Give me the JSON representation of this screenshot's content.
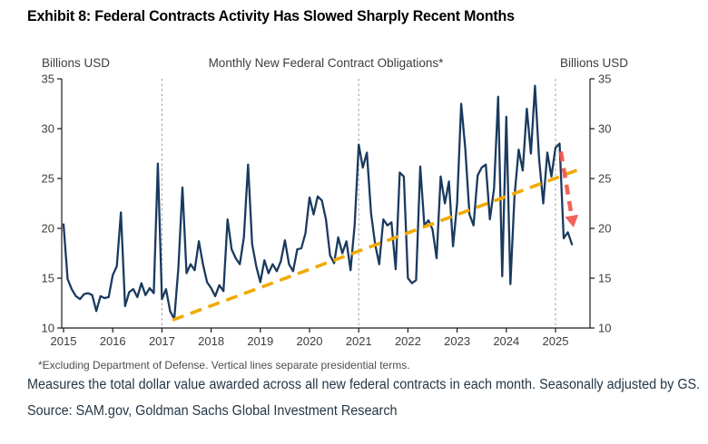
{
  "page": {
    "title": "Exhibit 8: Federal Contracts Activity Has Slowed Sharply Recent Months",
    "footnote": "*Excluding Department of Defense. Vertical lines separate presidential terms.",
    "description": "Measures the total dollar value awarded across all new federal contracts in each month. Seasonally adjusted by GS.",
    "source": "Source: SAM.gov, Goldman Sachs Global Investment Research"
  },
  "chart_data": {
    "type": "line",
    "title": "Monthly New Federal Contract Obligations*",
    "left_axis_caption": "Billions USD",
    "right_axis_caption": "Billions USD",
    "ylim": [
      10,
      35
    ],
    "y_ticks": [
      10,
      15,
      20,
      25,
      30,
      35
    ],
    "x_tick_years": [
      2015,
      2016,
      2017,
      2018,
      2019,
      2020,
      2021,
      2022,
      2023,
      2024,
      2025
    ],
    "grid": "off",
    "series_start": "2015-01",
    "series": [
      {
        "name": "Monthly new federal contract obligations ($bn, seasonally adjusted)",
        "values": [
          20.4,
          14.9,
          13.9,
          13.2,
          12.9,
          13.4,
          13.5,
          13.3,
          11.7,
          13.2,
          13.0,
          13.1,
          15.3,
          16.2,
          21.6,
          12.2,
          13.6,
          13.9,
          13.1,
          14.5,
          13.3,
          14.0,
          13.5,
          26.5,
          12.9,
          13.9,
          11.7,
          10.9,
          16.0,
          24.1,
          15.5,
          16.4,
          15.8,
          18.7,
          16.4,
          14.6,
          14.0,
          13.2,
          14.3,
          13.7,
          20.9,
          17.9,
          17.0,
          16.4,
          19.1,
          26.4,
          18.4,
          16.2,
          14.6,
          16.8,
          15.5,
          16.4,
          15.7,
          16.7,
          18.8,
          16.4,
          15.7,
          17.9,
          18.0,
          19.5,
          23.1,
          21.4,
          23.2,
          22.8,
          20.9,
          17.3,
          16.5,
          19.1,
          17.5,
          18.7,
          15.8,
          20.3,
          28.4,
          26.1,
          27.6,
          21.5,
          18.4,
          16.4,
          20.9,
          20.3,
          20.6,
          15.9,
          25.6,
          25.2,
          15.0,
          14.5,
          14.8,
          26.2,
          20.3,
          20.8,
          19.9,
          17.0,
          25.2,
          22.5,
          24.7,
          18.2,
          22.5,
          32.5,
          28.0,
          21.4,
          20.3,
          25.3,
          26.1,
          26.4,
          20.9,
          24.0,
          33.2,
          15.2,
          31.2,
          14.4,
          23.2,
          27.9,
          25.8,
          32.0,
          27.5,
          34.3,
          27.0,
          22.5,
          27.6,
          25.2,
          28.1,
          28.5,
          19.0,
          19.6,
          18.4
        ]
      }
    ],
    "trendline": {
      "style": "dashed",
      "from": {
        "month_index": 26.6,
        "value": 10.8
      },
      "to": {
        "month_index": 125.7,
        "value": 25.9
      }
    },
    "decline_arrow": {
      "style": "dashed-arrow",
      "from": {
        "month_index": 121.3,
        "value": 27.7
      },
      "to": {
        "month_index": 124.4,
        "value": 20.1
      }
    },
    "presidential_term_separators_month_index": [
      24,
      72,
      120
    ],
    "legend_position": "none",
    "colors": {
      "line": "#1a3a5f",
      "trendline": "#f2a900",
      "arrow": "#f0564c",
      "separator": "#999999",
      "axis": "#1a1a1a",
      "tick_text": "#3d3d3d"
    }
  }
}
